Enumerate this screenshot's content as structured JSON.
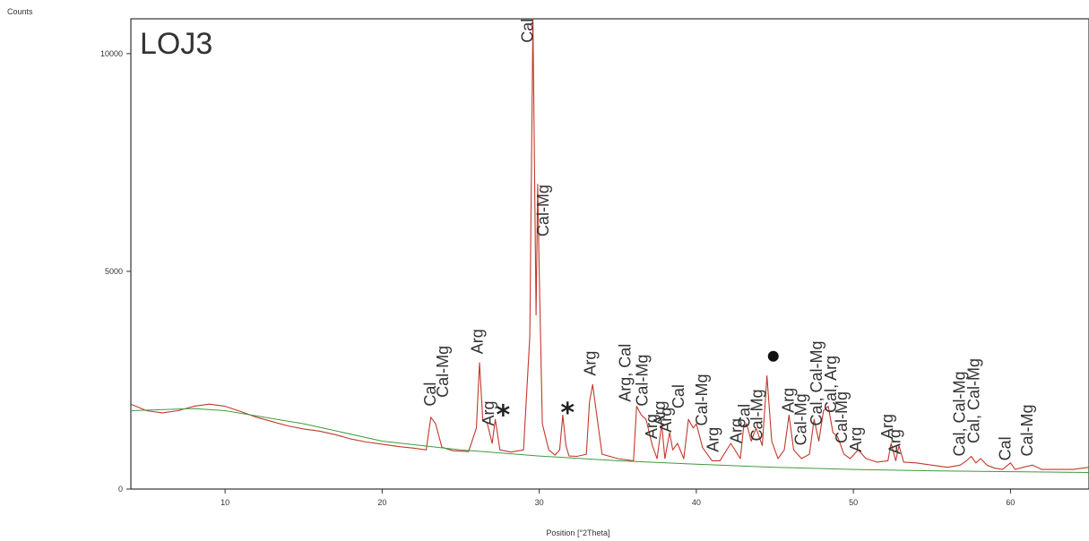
{
  "chart_data": {
    "type": "line",
    "title": "LOJ3",
    "xlabel": "Position [°2Theta]",
    "ylabel": "Counts",
    "xlim": [
      4,
      65
    ],
    "ylim": [
      0,
      10800
    ],
    "x_ticks": [
      10,
      20,
      30,
      40,
      50,
      60
    ],
    "y_ticks": [
      0,
      5000,
      10000
    ],
    "x_tick_labels": [
      "10",
      "20",
      "30",
      "40",
      "50",
      "60"
    ],
    "y_tick_labels": [
      "0",
      "5000",
      "10000"
    ],
    "grid": false,
    "colors": {
      "pattern": "#c0392b",
      "background_line": "#3f9a3f",
      "text": "#333333"
    },
    "series": [
      {
        "role": "pattern",
        "x": [
          4,
          5,
          6,
          7,
          8,
          9,
          10,
          11,
          12,
          13,
          14,
          15,
          16,
          17,
          18,
          19,
          20,
          21,
          22,
          22.8,
          23.1,
          23.4,
          23.8,
          24.5,
          25.5,
          26.0,
          26.2,
          26.4,
          26.7,
          27.0,
          27.2,
          27.5,
          28.2,
          29.0,
          29.4,
          29.6,
          29.8,
          29.9,
          30.0,
          30.2,
          30.6,
          31.0,
          31.3,
          31.5,
          31.7,
          31.9,
          32.4,
          33.0,
          33.2,
          33.4,
          34.0,
          35.0,
          36.0,
          36.2,
          36.5,
          36.8,
          37.2,
          37.5,
          37.8,
          38.0,
          38.3,
          38.5,
          38.8,
          39.2,
          39.5,
          39.8,
          40.0,
          40.4,
          41.0,
          41.5,
          42.2,
          42.8,
          43.0,
          43.2,
          43.5,
          43.8,
          44.2,
          44.5,
          44.8,
          45.2,
          45.6,
          45.9,
          46.2,
          46.7,
          47.2,
          47.5,
          47.8,
          48.1,
          48.4,
          48.7,
          49.0,
          49.4,
          49.8,
          50.3,
          50.8,
          51.5,
          52.2,
          52.4,
          52.7,
          52.9,
          53.2,
          54.0,
          55.0,
          56.0,
          56.8,
          57.2,
          57.5,
          57.8,
          58.1,
          58.5,
          59.0,
          59.5,
          60.0,
          60.3,
          60.8,
          61.4,
          62.0,
          63.0,
          64.0,
          65.0
        ],
        "y": [
          1950,
          1800,
          1750,
          1800,
          1900,
          1950,
          1900,
          1780,
          1650,
          1550,
          1450,
          1380,
          1330,
          1250,
          1150,
          1080,
          1030,
          980,
          940,
          900,
          1650,
          1500,
          960,
          880,
          860,
          1400,
          2900,
          1600,
          1500,
          1050,
          1600,
          900,
          850,
          900,
          3500,
          10800,
          4000,
          7000,
          5000,
          1500,
          900,
          780,
          900,
          1700,
          1000,
          760,
          750,
          800,
          2000,
          2400,
          800,
          700,
          650,
          1900,
          1700,
          1600,
          1000,
          700,
          1500,
          700,
          1300,
          900,
          1050,
          700,
          1600,
          1400,
          1500,
          950,
          650,
          650,
          1050,
          700,
          1400,
          1500,
          1100,
          1400,
          1000,
          2600,
          1100,
          700,
          900,
          1700,
          900,
          700,
          800,
          1600,
          1100,
          1800,
          1900,
          1300,
          1200,
          800,
          700,
          900,
          700,
          620,
          650,
          1050,
          650,
          1000,
          620,
          600,
          550,
          500,
          550,
          650,
          750,
          600,
          700,
          550,
          480,
          450,
          600,
          450,
          500,
          550,
          450,
          450,
          450,
          500
        ]
      },
      {
        "role": "background",
        "x": [
          4,
          8,
          10,
          15,
          20,
          25,
          30,
          35,
          40,
          45,
          50,
          55,
          60,
          65
        ],
        "y": [
          1800,
          1850,
          1800,
          1500,
          1100,
          900,
          760,
          650,
          570,
          500,
          450,
          420,
          400,
          380
        ]
      }
    ],
    "annotations": [
      {
        "text": "Cal",
        "x": 23.4,
        "y": 1900
      },
      {
        "text": "Cal-Mg",
        "x": 24.2,
        "y": 2100
      },
      {
        "text": "Arg",
        "x": 26.4,
        "y": 3100
      },
      {
        "text": "Arg",
        "x": 27.1,
        "y": 1450
      },
      {
        "text": "*",
        "x": 27.7,
        "y": 1700
      },
      {
        "text": "Cal",
        "x": 29.6,
        "y": 10250
      },
      {
        "text": "Cal-Mg",
        "x": 30.6,
        "y": 5800
      },
      {
        "text": "*",
        "x": 31.8,
        "y": 1750
      },
      {
        "text": "Arg",
        "x": 33.6,
        "y": 2600
      },
      {
        "text": "Arg, Cal",
        "x": 35.8,
        "y": 2000
      },
      {
        "text": "Cal-Mg",
        "x": 36.9,
        "y": 1900
      },
      {
        "text": "Arg",
        "x": 37.5,
        "y": 1150
      },
      {
        "text": "Arg",
        "x": 38.0,
        "y": 1450
      },
      {
        "text": "Arg",
        "x": 38.4,
        "y": 1300
      },
      {
        "text": "Cal",
        "x": 39.2,
        "y": 1850
      },
      {
        "text": "Cal-Mg",
        "x": 40.7,
        "y": 1450
      },
      {
        "text": "Arg",
        "x": 41.4,
        "y": 850
      },
      {
        "text": "Arg",
        "x": 42.9,
        "y": 1050
      },
      {
        "text": "Cal",
        "x": 43.4,
        "y": 1400
      },
      {
        "text": "Cal-Mg",
        "x": 44.2,
        "y": 1100
      },
      {
        "text": "Arg",
        "x": 46.2,
        "y": 1750
      },
      {
        "text": "Cal-Mg",
        "x": 47.0,
        "y": 1000
      },
      {
        "text": "Cal, Cal-Mg",
        "x": 48.0,
        "y": 1450
      },
      {
        "text": "Cal, Arg",
        "x": 48.9,
        "y": 1750
      },
      {
        "text": "Cal-Mg",
        "x": 49.6,
        "y": 1050
      },
      {
        "text": "Arg",
        "x": 50.5,
        "y": 850
      },
      {
        "text": "Arg",
        "x": 52.5,
        "y": 1150
      },
      {
        "text": "Arg",
        "x": 53.0,
        "y": 800
      },
      {
        "text": "Cal, Cal-Mg",
        "x": 57.1,
        "y": 750
      },
      {
        "text": "Cal, Cal-Mg",
        "x": 58.0,
        "y": 1050
      },
      {
        "text": "Cal",
        "x": 60.0,
        "y": 650
      },
      {
        "text": "Cal-Mg",
        "x": 61.4,
        "y": 750
      }
    ],
    "markers": [
      {
        "symbol": "circle",
        "x": 44.9,
        "y": 3050
      }
    ]
  }
}
